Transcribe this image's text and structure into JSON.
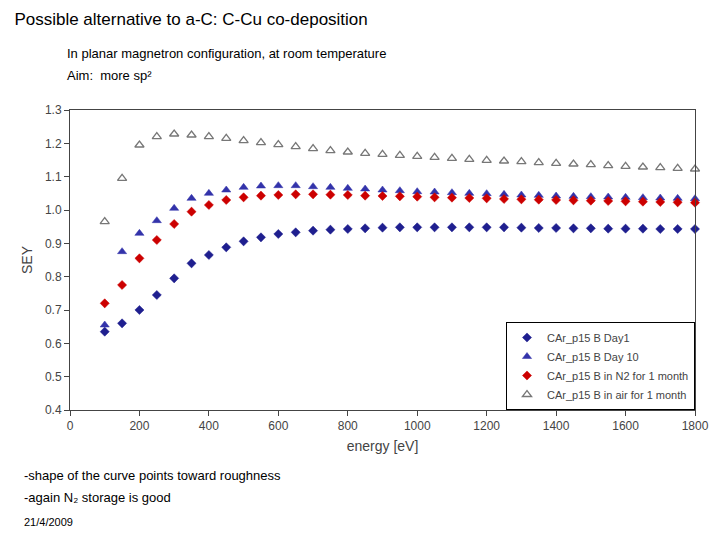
{
  "chart_data": {
    "type": "scatter",
    "title": "Possible alternative to a-C: C-Cu co-deposition",
    "subtitle": [
      "In planar magnetron configuration, at room temperature",
      "Aim:  more sp²"
    ],
    "annotations": [
      "-shape of the curve points toward roughness",
      "-again N₂ storage is good",
      "21/4/2009"
    ],
    "x_label": "energy [eV]",
    "y_label": "SEY",
    "xlim": [
      0,
      1800
    ],
    "ylim": [
      0.4,
      1.3
    ],
    "xticks": [
      0,
      200,
      400,
      600,
      800,
      1000,
      1200,
      1400,
      1600,
      1800
    ],
    "yticks": [
      0.4,
      0.5,
      0.6,
      0.7,
      0.8,
      0.9,
      {
        "value": 1.0,
        "label": "1.0"
      },
      1.1,
      1.2,
      1.3
    ],
    "grid": false,
    "legend": "lower right",
    "x": [
      100,
      150,
      200,
      250,
      300,
      350,
      400,
      450,
      500,
      550,
      600,
      650,
      700,
      750,
      800,
      850,
      900,
      950,
      1000,
      1050,
      1100,
      1150,
      1200,
      1250,
      1300,
      1350,
      1400,
      1450,
      1500,
      1550,
      1600,
      1650,
      1700,
      1750,
      1800
    ],
    "series": [
      {
        "name": "CAr_p15 B Day1",
        "color": "#1f1f8f",
        "marker": "diamond",
        "values": [
          0.635,
          0.66,
          0.7,
          0.745,
          0.795,
          0.84,
          0.865,
          0.888,
          0.906,
          0.918,
          0.928,
          0.933,
          0.938,
          0.941,
          0.943,
          0.945,
          0.947,
          0.948,
          0.948,
          0.948,
          0.948,
          0.948,
          0.948,
          0.948,
          0.947,
          0.946,
          0.946,
          0.945,
          0.945,
          0.944,
          0.944,
          0.944,
          0.943,
          0.943,
          0.943
        ]
      },
      {
        "name": "CAr_p15 B Day 10",
        "color": "#3333aa",
        "marker": "triangle-up",
        "values": [
          0.655,
          0.875,
          0.93,
          0.968,
          1.005,
          1.035,
          1.05,
          1.06,
          1.068,
          1.072,
          1.073,
          1.073,
          1.07,
          1.068,
          1.065,
          1.063,
          1.06,
          1.058,
          1.055,
          1.054,
          1.052,
          1.05,
          1.049,
          1.047,
          1.045,
          1.044,
          1.042,
          1.041,
          1.04,
          1.039,
          1.038,
          1.037,
          1.036,
          1.035,
          1.034
        ]
      },
      {
        "name": "CAr_p15 B in N2 for 1 month",
        "color": "#cc0000",
        "marker": "diamond",
        "values": [
          0.72,
          0.775,
          0.855,
          0.91,
          0.958,
          0.995,
          1.015,
          1.03,
          1.038,
          1.043,
          1.045,
          1.047,
          1.047,
          1.046,
          1.045,
          1.043,
          1.042,
          1.041,
          1.04,
          1.038,
          1.037,
          1.036,
          1.035,
          1.033,
          1.032,
          1.031,
          1.03,
          1.029,
          1.028,
          1.027,
          1.026,
          1.025,
          1.024,
          1.023,
          1.022
        ]
      },
      {
        "name": "CAr_p15 B in air for 1 month",
        "color": "#777777",
        "marker": "triangle-up-open",
        "values": [
          0.965,
          1.095,
          1.195,
          1.22,
          1.228,
          1.225,
          1.22,
          1.215,
          1.208,
          1.202,
          1.196,
          1.19,
          1.184,
          1.178,
          1.174,
          1.17,
          1.167,
          1.164,
          1.161,
          1.158,
          1.155,
          1.152,
          1.149,
          1.147,
          1.145,
          1.142,
          1.14,
          1.138,
          1.136,
          1.133,
          1.131,
          1.129,
          1.127,
          1.125,
          1.123
        ]
      }
    ]
  }
}
